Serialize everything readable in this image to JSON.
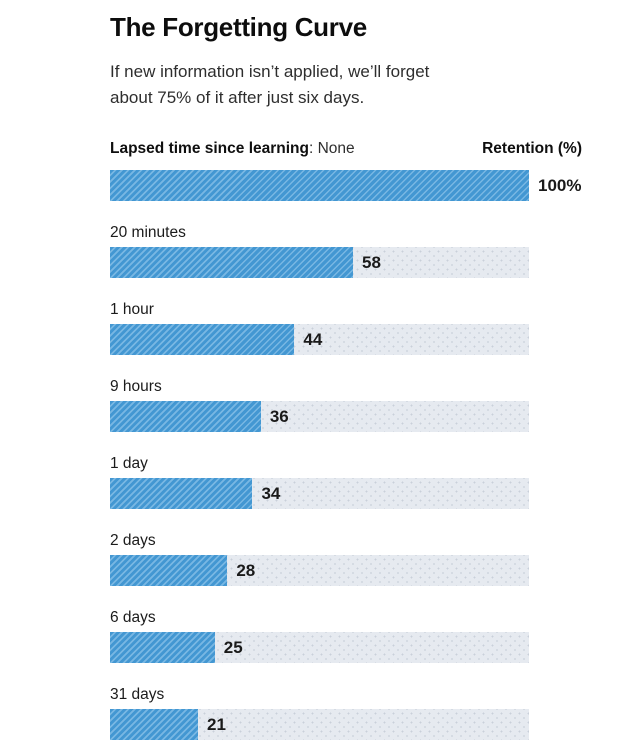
{
  "title": "The Forgetting Curve",
  "subtitle": "If new information isn’t applied, we’ll forget about 75% of it after just six days.",
  "chart_header": {
    "left_bold": "Lapsed time since learning",
    "left_rest": ": None",
    "right": "Retention (%)"
  },
  "chart_data": {
    "type": "bar",
    "orientation": "horizontal",
    "title": "The Forgetting Curve",
    "xlabel": "Lapsed time since learning",
    "ylabel": "Retention (%)",
    "xlim": [
      0,
      100
    ],
    "grid": false,
    "legend": false,
    "categories": [
      "None",
      "20 minutes",
      "1 hour",
      "9 hours",
      "1 day",
      "2 days",
      "6 days",
      "31 days"
    ],
    "values": [
      100,
      58,
      44,
      36,
      34,
      28,
      25,
      21
    ],
    "value_labels": [
      "100%",
      "58",
      "44",
      "36",
      "34",
      "28",
      "25",
      "21"
    ],
    "bar_fill_color": "#4397d2",
    "bar_hatch_color": "#78b7e3",
    "bar_hatch_style": "diagonal-forward",
    "track_color": "#e6eaf0",
    "track_dot_color": "#c9d0da"
  }
}
